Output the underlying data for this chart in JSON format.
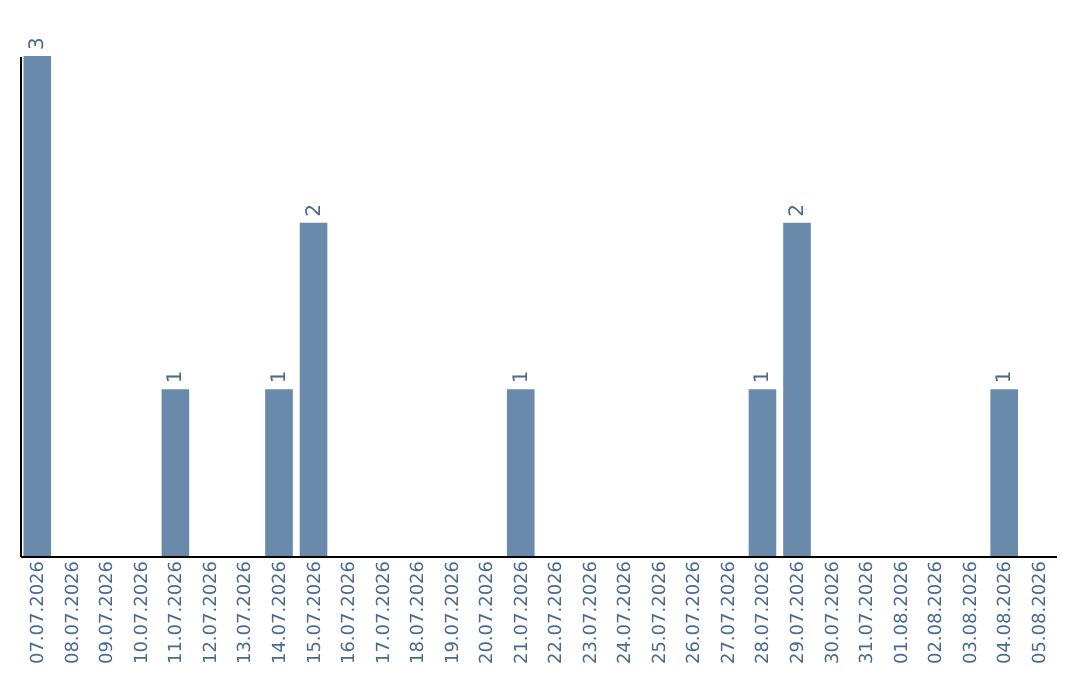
{
  "chart_data": {
    "type": "bar",
    "categories": [
      "07.07.2026",
      "08.07.2026",
      "09.07.2026",
      "10.07.2026",
      "11.07.2026",
      "12.07.2026",
      "13.07.2026",
      "14.07.2026",
      "15.07.2026",
      "16.07.2026",
      "17.07.2026",
      "18.07.2026",
      "19.07.2026",
      "20.07.2026",
      "21.07.2026",
      "22.07.2026",
      "23.07.2026",
      "24.07.2026",
      "25.07.2026",
      "26.07.2026",
      "27.07.2026",
      "28.07.2026",
      "29.07.2026",
      "30.07.2026",
      "31.07.2026",
      "01.08.2026",
      "02.08.2026",
      "03.08.2026",
      "04.08.2026",
      "05.08.2026"
    ],
    "values": [
      3,
      0,
      0,
      0,
      1,
      0,
      0,
      1,
      2,
      0,
      0,
      0,
      0,
      0,
      1,
      0,
      0,
      0,
      0,
      0,
      0,
      1,
      2,
      0,
      0,
      0,
      0,
      0,
      1,
      0
    ],
    "value_labels": [
      "3",
      null,
      null,
      null,
      "1",
      null,
      null,
      "1",
      "2",
      null,
      null,
      null,
      null,
      null,
      "1",
      null,
      null,
      null,
      null,
      null,
      null,
      "1",
      "2",
      null,
      null,
      null,
      null,
      null,
      "1",
      null
    ],
    "color": "#6a8aab",
    "ylim": [
      0,
      3
    ],
    "grid": false,
    "tick_labels": "x"
  }
}
